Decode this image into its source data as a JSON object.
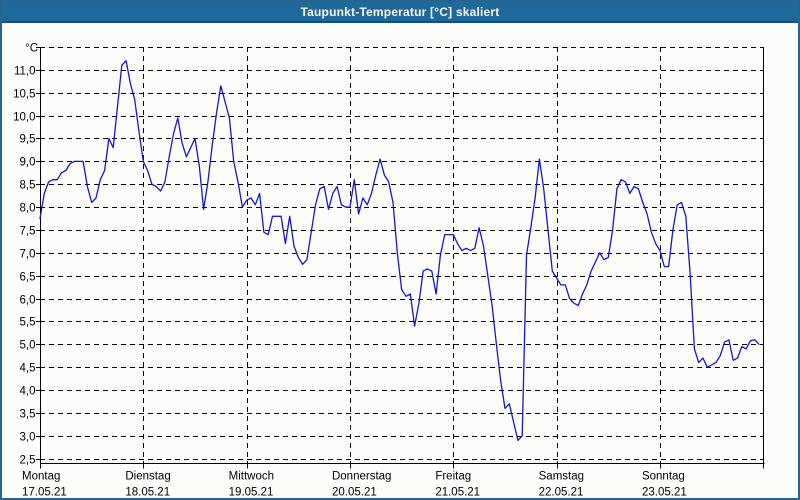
{
  "window": {
    "title": "Taupunkt-Temperatur [°C] skaliert"
  },
  "colors": {
    "titlebar_bg": "#1e699a",
    "titlebar_border": "#155078",
    "frame_border": "#26648f",
    "chart_bg": "#fcfdfa",
    "line": "#1717c4",
    "grid": "#000000",
    "text": "#000000",
    "title_text": "#f8f8ee"
  },
  "chart_data": {
    "type": "line",
    "title": "Taupunkt-Temperatur [°C] skaliert",
    "unit_label": "°C",
    "ylabel": "°C",
    "ylim": [
      2.5,
      11.5
    ],
    "ytick_step": 0.5,
    "grid": true,
    "legend": "none",
    "ytick_labels": [
      "2,5",
      "3,0",
      "3,5",
      "4,0",
      "4,5",
      "5,0",
      "5,5",
      "6,0",
      "6,5",
      "7,0",
      "7,5",
      "8,0",
      "8,5",
      "9,0",
      "9,5",
      "10,0",
      "10,5",
      "11,0"
    ],
    "x_days": [
      {
        "name": "Montag",
        "date": "17.05.21"
      },
      {
        "name": "Dienstag",
        "date": "18.05.21"
      },
      {
        "name": "Mittwoch",
        "date": "19.05.21"
      },
      {
        "name": "Donnerstag",
        "date": "20.05.21"
      },
      {
        "name": "Freitag",
        "date": "21.05.21"
      },
      {
        "name": "Samstag",
        "date": "22.05.21"
      },
      {
        "name": "Sonntag",
        "date": "23.05.21"
      }
    ],
    "points_per_day": 24,
    "series": [
      {
        "name": "Taupunkt-Temperatur",
        "values": [
          7.75,
          8.3,
          8.55,
          8.6,
          8.6,
          8.75,
          8.8,
          8.95,
          9.0,
          9.0,
          9.0,
          8.45,
          8.1,
          8.2,
          8.6,
          8.8,
          9.5,
          9.3,
          10.2,
          11.1,
          11.2,
          10.7,
          10.35,
          9.65,
          9.0,
          8.8,
          8.5,
          8.45,
          8.35,
          8.55,
          9.1,
          9.6,
          9.95,
          9.4,
          9.1,
          9.3,
          9.5,
          8.9,
          7.95,
          8.55,
          9.35,
          10.05,
          10.65,
          10.3,
          9.95,
          9.0,
          8.55,
          8.0,
          8.15,
          8.2,
          8.05,
          8.3,
          7.45,
          7.4,
          7.8,
          7.8,
          7.8,
          7.2,
          7.8,
          7.15,
          6.9,
          6.75,
          6.85,
          7.45,
          8.05,
          8.4,
          8.45,
          7.95,
          8.3,
          8.45,
          8.05,
          8.0,
          8.0,
          8.6,
          7.85,
          8.2,
          8.05,
          8.3,
          8.7,
          9.05,
          8.7,
          8.55,
          8.1,
          7.0,
          6.2,
          6.05,
          6.1,
          5.4,
          5.9,
          6.6,
          6.65,
          6.6,
          6.1,
          6.95,
          7.4,
          7.4,
          7.4,
          7.2,
          7.05,
          7.1,
          7.05,
          7.1,
          7.55,
          7.15,
          6.5,
          5.85,
          5.0,
          4.2,
          3.6,
          3.7,
          3.3,
          2.9,
          3.0,
          6.95,
          7.55,
          8.2,
          9.05,
          8.4,
          7.5,
          6.6,
          6.45,
          6.3,
          6.3,
          6.0,
          5.9,
          5.85,
          6.1,
          6.3,
          6.6,
          6.8,
          7.0,
          6.85,
          6.9,
          7.5,
          8.4,
          8.6,
          8.55,
          8.3,
          8.45,
          8.4,
          8.1,
          7.85,
          7.45,
          7.2,
          7.05,
          6.7,
          6.7,
          7.5,
          8.05,
          8.1,
          7.8,
          6.55,
          4.9,
          4.6,
          4.7,
          4.5,
          4.55,
          4.6,
          4.75,
          5.05,
          5.1,
          4.65,
          4.7,
          4.95,
          4.9,
          5.08,
          5.1,
          5.0
        ]
      }
    ]
  }
}
